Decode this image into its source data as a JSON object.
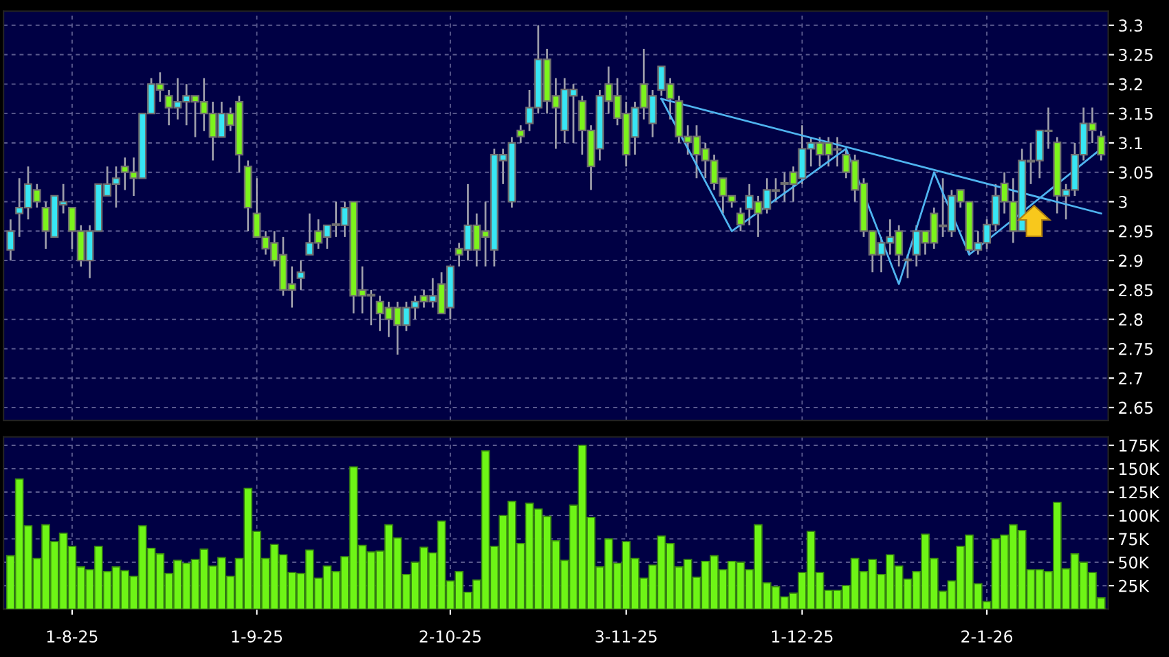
{
  "chart_data": [
    {
      "type": "candlestick",
      "categories": [
        null,
        null,
        null,
        null,
        null,
        null,
        null,
        null,
        null,
        null,
        null,
        null,
        null,
        null,
        null,
        null,
        null,
        null,
        null,
        null,
        null,
        null,
        null,
        null,
        null,
        null,
        null,
        null,
        null,
        null,
        null,
        null,
        null,
        null,
        null,
        null,
        null,
        null,
        null,
        null,
        null,
        null,
        null,
        null,
        null,
        null,
        null,
        null,
        null,
        null,
        null,
        null,
        null,
        null,
        null,
        null,
        null,
        null,
        null,
        null,
        null,
        null,
        null,
        null,
        null,
        null,
        null,
        null,
        null,
        null,
        null,
        null,
        null,
        null,
        null,
        null,
        null,
        null,
        null,
        null,
        null,
        null,
        null,
        null,
        null,
        null,
        null,
        null,
        null,
        null,
        null,
        null,
        null,
        null,
        null,
        null,
        null,
        null,
        null,
        null,
        null,
        null,
        null,
        null,
        null,
        null,
        null,
        null,
        null,
        null,
        null,
        null,
        null,
        null,
        null,
        null,
        null,
        null,
        null,
        null,
        null,
        null,
        null,
        null,
        null
      ],
      "ohlc": [
        [
          2.918,
          2.97,
          2.9,
          2.95
        ],
        [
          2.98,
          3.04,
          2.94,
          2.99
        ],
        [
          2.99,
          3.06,
          2.97,
          3.03
        ],
        [
          3.02,
          3.03,
          2.99,
          3.0
        ],
        [
          2.99,
          3.0,
          2.92,
          2.95
        ],
        [
          2.94,
          3.01,
          2.94,
          3.01
        ],
        [
          2.995,
          3.03,
          2.98,
          3.0
        ],
        [
          2.99,
          2.99,
          2.92,
          2.95
        ],
        [
          2.95,
          2.96,
          2.89,
          2.9
        ],
        [
          2.9,
          2.96,
          2.87,
          2.95
        ],
        [
          2.95,
          3.03,
          2.95,
          3.03
        ],
        [
          3.01,
          3.06,
          3.01,
          3.03
        ],
        [
          3.03,
          3.06,
          2.99,
          3.04
        ],
        [
          3.06,
          3.075,
          3.02,
          3.05
        ],
        [
          3.05,
          3.075,
          3.01,
          3.04
        ],
        [
          3.04,
          3.15,
          3.04,
          3.15
        ],
        [
          3.15,
          3.21,
          3.15,
          3.2
        ],
        [
          3.2,
          3.22,
          3.17,
          3.19
        ],
        [
          3.18,
          3.19,
          3.13,
          3.16
        ],
        [
          3.16,
          3.21,
          3.14,
          3.17
        ],
        [
          3.17,
          3.2,
          3.13,
          3.18
        ],
        [
          3.18,
          3.18,
          3.11,
          3.17
        ],
        [
          3.17,
          3.21,
          3.12,
          3.15
        ],
        [
          3.15,
          3.17,
          3.07,
          3.11
        ],
        [
          3.11,
          3.17,
          3.11,
          3.15
        ],
        [
          3.15,
          3.16,
          3.12,
          3.13
        ],
        [
          3.17,
          3.18,
          3.05,
          3.08
        ],
        [
          3.06,
          3.07,
          2.95,
          2.99
        ],
        [
          2.98,
          3.04,
          2.94,
          2.94
        ],
        [
          2.94,
          2.95,
          2.91,
          2.92
        ],
        [
          2.93,
          2.95,
          2.89,
          2.9
        ],
        [
          2.91,
          2.94,
          2.84,
          2.85
        ],
        [
          2.86,
          2.89,
          2.82,
          2.85
        ],
        [
          2.87,
          2.9,
          2.85,
          2.88
        ],
        [
          2.91,
          2.98,
          2.91,
          2.93
        ],
        [
          2.95,
          2.97,
          2.92,
          2.93
        ],
        [
          2.94,
          2.96,
          2.92,
          2.96
        ],
        [
          2.962,
          3.0,
          2.94,
          2.96
        ],
        [
          2.96,
          3.0,
          2.94,
          2.99
        ],
        [
          3.0,
          3.0,
          2.81,
          2.84
        ],
        [
          2.85,
          2.89,
          2.81,
          2.84
        ],
        [
          2.842,
          2.85,
          2.79,
          2.84
        ],
        [
          2.83,
          2.84,
          2.78,
          2.81
        ],
        [
          2.82,
          2.83,
          2.77,
          2.8
        ],
        [
          2.82,
          2.83,
          2.74,
          2.79
        ],
        [
          2.79,
          2.83,
          2.78,
          2.82
        ],
        [
          2.82,
          2.84,
          2.8,
          2.83
        ],
        [
          2.84,
          2.85,
          2.82,
          2.83
        ],
        [
          2.83,
          2.87,
          2.82,
          2.84
        ],
        [
          2.86,
          2.88,
          2.81,
          2.81
        ],
        [
          2.82,
          2.89,
          2.8,
          2.89
        ],
        [
          2.92,
          2.93,
          2.89,
          2.91
        ],
        [
          2.918,
          3.03,
          2.9,
          2.96
        ],
        [
          2.96,
          2.98,
          2.89,
          2.918
        ],
        [
          2.95,
          3.0,
          2.89,
          2.94
        ],
        [
          2.918,
          3.09,
          2.89,
          3.08
        ],
        [
          3.07,
          3.09,
          3.03,
          3.08
        ],
        [
          3.0,
          3.11,
          2.99,
          3.1
        ],
        [
          3.121,
          3.13,
          3.1,
          3.111
        ],
        [
          3.133,
          3.19,
          3.12,
          3.16
        ],
        [
          3.16,
          3.3,
          3.15,
          3.242
        ],
        [
          3.242,
          3.26,
          3.15,
          3.171
        ],
        [
          3.18,
          3.21,
          3.09,
          3.16
        ],
        [
          3.121,
          3.21,
          3.1,
          3.191
        ],
        [
          3.18,
          3.2,
          3.1,
          3.191
        ],
        [
          3.171,
          3.18,
          3.08,
          3.121
        ],
        [
          3.121,
          3.13,
          3.02,
          3.06
        ],
        [
          3.09,
          3.19,
          3.07,
          3.18
        ],
        [
          3.2,
          3.23,
          3.15,
          3.171
        ],
        [
          3.18,
          3.21,
          3.13,
          3.142
        ],
        [
          3.15,
          3.17,
          3.06,
          3.08
        ],
        [
          3.11,
          3.17,
          3.08,
          3.16
        ],
        [
          3.2,
          3.26,
          3.14,
          3.16
        ],
        [
          3.133,
          3.19,
          3.11,
          3.18
        ],
        [
          3.19,
          3.23,
          3.18,
          3.23
        ],
        [
          3.2,
          3.21,
          3.14,
          3.175
        ],
        [
          3.171,
          3.18,
          3.1,
          3.111
        ],
        [
          3.111,
          3.13,
          3.08,
          3.101
        ],
        [
          3.111,
          3.13,
          3.04,
          3.08
        ],
        [
          3.09,
          3.1,
          3.04,
          3.07
        ],
        [
          3.07,
          3.08,
          3.02,
          3.031
        ],
        [
          3.04,
          3.04,
          2.98,
          3.01
        ],
        [
          3.01,
          3.01,
          2.99,
          3.0
        ],
        [
          2.98,
          2.99,
          2.95,
          2.961
        ],
        [
          2.988,
          3.03,
          2.96,
          3.01
        ],
        [
          3.0,
          3.01,
          2.94,
          2.98
        ],
        [
          2.988,
          3.04,
          2.98,
          3.02
        ],
        [
          3.018,
          3.04,
          3.0,
          3.02
        ],
        [
          3.03,
          3.05,
          3.0,
          3.032
        ],
        [
          3.05,
          3.06,
          3.0,
          3.03
        ],
        [
          3.04,
          3.13,
          3.03,
          3.09
        ],
        [
          3.09,
          3.11,
          3.06,
          3.1
        ],
        [
          3.1,
          3.11,
          3.06,
          3.08
        ],
        [
          3.1,
          3.11,
          3.06,
          3.08
        ],
        [
          3.09,
          3.11,
          3.06,
          3.088
        ],
        [
          3.08,
          3.09,
          3.04,
          3.05
        ],
        [
          3.07,
          3.08,
          3.0,
          3.02
        ],
        [
          3.031,
          3.04,
          2.94,
          2.95
        ],
        [
          2.95,
          2.95,
          2.88,
          2.91
        ],
        [
          2.91,
          2.94,
          2.88,
          2.93
        ],
        [
          2.93,
          2.97,
          2.91,
          2.94
        ],
        [
          2.95,
          2.96,
          2.89,
          2.91
        ],
        [
          2.902,
          2.91,
          2.87,
          2.9
        ],
        [
          2.91,
          2.96,
          2.89,
          2.95
        ],
        [
          2.95,
          2.95,
          2.91,
          2.93
        ],
        [
          2.98,
          2.99,
          2.92,
          2.93
        ],
        [
          2.96,
          3.04,
          2.94,
          2.958
        ],
        [
          2.95,
          3.02,
          2.94,
          3.01
        ],
        [
          3.02,
          3.02,
          2.99,
          3.0
        ],
        [
          3.0,
          3.0,
          2.91,
          2.918
        ],
        [
          2.918,
          2.95,
          2.91,
          2.93
        ],
        [
          2.93,
          2.97,
          2.92,
          2.961
        ],
        [
          2.961,
          3.03,
          2.95,
          3.01
        ],
        [
          3.031,
          3.05,
          2.98,
          3.0
        ],
        [
          3.0,
          3.04,
          2.93,
          2.95
        ],
        [
          2.95,
          3.09,
          2.95,
          3.07
        ],
        [
          3.068,
          3.1,
          3.03,
          3.07
        ],
        [
          3.07,
          3.121,
          3.04,
          3.121
        ],
        [
          3.12,
          3.16,
          3.09,
          3.121
        ],
        [
          3.101,
          3.11,
          2.98,
          3.01
        ],
        [
          3.01,
          3.03,
          2.97,
          3.02
        ],
        [
          3.02,
          3.1,
          3.01,
          3.08
        ],
        [
          3.08,
          3.16,
          3.07,
          3.133
        ],
        [
          3.133,
          3.16,
          3.1,
          3.121
        ],
        [
          3.111,
          3.12,
          3.07,
          3.08
        ]
      ],
      "colors": [
        "#37e6f4",
        "#37e6f4",
        "#37e6f4",
        "#7cf41c",
        "#7cf41c",
        "#37e6f4",
        "#37e6f4",
        "#7cf41c",
        "#7cf41c",
        "#37e6f4",
        "#37e6f4",
        "#37e6f4",
        "#37e6f4",
        "#7cf41c",
        "#7cf41c",
        "#37e6f4",
        "#37e6f4",
        "#7cf41c",
        "#7cf41c",
        "#37e6f4",
        "#37e6f4",
        "#7cf41c",
        "#7cf41c",
        "#7cf41c",
        "#37e6f4",
        "#7cf41c",
        "#7cf41c",
        "#7cf41c",
        "#7cf41c",
        "#7cf41c",
        "#7cf41c",
        "#7cf41c",
        "#7cf41c",
        "#37e6f4",
        "#37e6f4",
        "#7cf41c",
        "#37e6f4",
        "#7cf41c",
        "#37e6f4",
        "#7cf41c",
        "#7cf41c",
        "#7cf41c",
        "#7cf41c",
        "#7cf41c",
        "#7cf41c",
        "#37e6f4",
        "#37e6f4",
        "#7cf41c",
        "#37e6f4",
        "#7cf41c",
        "#37e6f4",
        "#7cf41c",
        "#37e6f4",
        "#7cf41c",
        "#7cf41c",
        "#37e6f4",
        "#37e6f4",
        "#37e6f4",
        "#7cf41c",
        "#37e6f4",
        "#37e6f4",
        "#7cf41c",
        "#7cf41c",
        "#37e6f4",
        "#37e6f4",
        "#7cf41c",
        "#7cf41c",
        "#37e6f4",
        "#7cf41c",
        "#7cf41c",
        "#7cf41c",
        "#37e6f4",
        "#7cf41c",
        "#37e6f4",
        "#37e6f4",
        "#7cf41c",
        "#7cf41c",
        "#7cf41c",
        "#7cf41c",
        "#7cf41c",
        "#7cf41c",
        "#7cf41c",
        "#7cf41c",
        "#7cf41c",
        "#37e6f4",
        "#7cf41c",
        "#37e6f4",
        "#37e6f4",
        "#37e6f4",
        "#7cf41c",
        "#37e6f4",
        "#37e6f4",
        "#7cf41c",
        "#7cf41c",
        "#7cf41c",
        "#7cf41c",
        "#7cf41c",
        "#7cf41c",
        "#7cf41c",
        "#37e6f4",
        "#37e6f4",
        "#7cf41c",
        "#7cf41c",
        "#37e6f4",
        "#7cf41c",
        "#7cf41c",
        "#7cf41c",
        "#37e6f4",
        "#7cf41c",
        "#7cf41c",
        "#37e6f4",
        "#37e6f4",
        "#37e6f4",
        "#7cf41c",
        "#7cf41c",
        "#37e6f4",
        "#37e6f4",
        "#37e6f4",
        "#37e6f4",
        "#7cf41c",
        "#37e6f4",
        "#37e6f4",
        "#37e6f4",
        "#7cf41c",
        "#7cf41c"
      ],
      "series": [
        {
          "type": "line",
          "color": "#4fb4f0",
          "values": [
            null,
            null,
            null,
            null,
            null,
            null,
            null,
            null,
            null,
            null,
            null,
            null,
            null,
            null,
            null,
            null,
            null,
            null,
            null,
            null,
            null,
            null,
            null,
            null,
            null,
            null,
            null,
            null,
            null,
            null,
            null,
            null,
            null,
            null,
            null,
            null,
            null,
            null,
            null,
            null,
            null,
            null,
            null,
            null,
            null,
            null,
            null,
            null,
            null,
            null,
            null,
            null,
            null,
            null,
            null,
            null,
            null,
            null,
            null,
            null,
            null,
            null,
            null,
            null,
            null,
            null,
            null,
            null,
            null,
            null,
            null,
            null,
            null,
            null,
            3.175,
            null,
            null,
            null,
            null,
            null,
            null,
            null,
            null,
            null,
            null,
            null,
            null,
            null,
            null,
            null,
            null,
            null,
            null,
            null,
            null,
            null,
            null,
            null,
            null,
            null,
            null,
            null,
            null,
            null,
            null,
            null,
            null,
            null,
            null,
            null,
            null,
            null,
            null,
            null,
            null,
            null,
            null,
            null,
            null,
            null,
            null,
            null,
            null,
            null,
            2.98
          ]
        },
        {
          "type": "line",
          "color": "#4fb4f0",
          "values": [
            null,
            null,
            null,
            null,
            null,
            null,
            null,
            null,
            null,
            null,
            null,
            null,
            null,
            null,
            null,
            null,
            null,
            null,
            null,
            null,
            null,
            null,
            null,
            null,
            null,
            null,
            null,
            null,
            null,
            null,
            null,
            null,
            null,
            null,
            null,
            null,
            null,
            null,
            null,
            null,
            null,
            null,
            null,
            null,
            null,
            null,
            null,
            null,
            null,
            null,
            null,
            null,
            null,
            null,
            null,
            null,
            null,
            null,
            null,
            null,
            null,
            null,
            null,
            null,
            null,
            null,
            null,
            null,
            null,
            null,
            null,
            null,
            null,
            null,
            3.175,
            null,
            null,
            null,
            null,
            null,
            null,
            null,
            2.95,
            null,
            null,
            null,
            null,
            null,
            null,
            null,
            null,
            null,
            null,
            null,
            null,
            3.09,
            null,
            null,
            null,
            null,
            null,
            2.86,
            null,
            null,
            null,
            3.05,
            null,
            null,
            null,
            2.91,
            null,
            null,
            null,
            null,
            null,
            null,
            null,
            null,
            null,
            null,
            null,
            null,
            null,
            null,
            3.09
          ]
        }
      ],
      "ylim": [
        2.628,
        3.324
      ],
      "yticks": [
        2.65,
        2.7,
        2.75,
        2.8,
        2.85,
        2.9,
        2.95,
        3,
        3.05,
        3.1,
        3.15,
        3.2,
        3.25,
        3.3
      ],
      "grid": true,
      "tick_labels": "y"
    },
    {
      "type": "bar",
      "categories": [
        null,
        null,
        null,
        null,
        null,
        null,
        null,
        "1-8-25",
        null,
        null,
        null,
        null,
        null,
        null,
        null,
        null,
        null,
        null,
        null,
        null,
        null,
        null,
        null,
        null,
        null,
        null,
        null,
        null,
        "1-9-25",
        null,
        null,
        null,
        null,
        null,
        null,
        null,
        null,
        null,
        null,
        null,
        null,
        null,
        null,
        null,
        null,
        null,
        null,
        null,
        null,
        null,
        "2-10-25",
        null,
        null,
        null,
        null,
        null,
        null,
        null,
        null,
        null,
        null,
        null,
        null,
        null,
        null,
        null,
        null,
        null,
        null,
        null,
        "3-11-25",
        null,
        null,
        null,
        null,
        null,
        null,
        null,
        null,
        null,
        null,
        null,
        null,
        null,
        null,
        null,
        null,
        null,
        null,
        null,
        "1-12-25",
        null,
        null,
        null,
        null,
        null,
        null,
        null,
        null,
        null,
        null,
        null,
        null,
        null,
        null,
        null,
        null,
        null,
        null,
        null,
        null,
        "2-1-26",
        null,
        null,
        null,
        null,
        null,
        null,
        null,
        null,
        null,
        null,
        null,
        null,
        null
      ],
      "values": [
        57000,
        139000,
        89000,
        54000,
        90000,
        72000,
        81000,
        67000,
        45000,
        42000,
        67000,
        40000,
        45000,
        41000,
        35000,
        89000,
        65000,
        59000,
        38000,
        52000,
        49000,
        53000,
        64000,
        46000,
        55000,
        35000,
        54000,
        129000,
        83000,
        54000,
        69000,
        58000,
        39000,
        38000,
        63000,
        33000,
        46000,
        40000,
        56000,
        152000,
        68000,
        61000,
        62000,
        90000,
        76000,
        37000,
        50000,
        66000,
        60000,
        94000,
        30000,
        40000,
        18000,
        31000,
        169000,
        67000,
        100000,
        115000,
        70000,
        113000,
        107000,
        99000,
        73000,
        52000,
        111000,
        175000,
        98000,
        45000,
        75000,
        49000,
        72000,
        54000,
        33000,
        47000,
        78000,
        70000,
        45000,
        53000,
        34000,
        51000,
        57000,
        42000,
        51000,
        50000,
        42000,
        90000,
        28000,
        24000,
        13000,
        17000,
        39000,
        83000,
        39000,
        20000,
        20000,
        25000,
        54000,
        40000,
        53000,
        37000,
        58000,
        46000,
        32000,
        40000,
        80000,
        54000,
        19000,
        30000,
        67000,
        79000,
        27000,
        8000,
        75000,
        79000,
        90000,
        84000,
        42000,
        42000,
        40000,
        114000,
        43000,
        59000,
        50000,
        39000,
        12000
      ],
      "color": "#6ef516",
      "ylim": [
        0,
        184000
      ],
      "yticks": [
        {
          "value": 25000,
          "label": "25K"
        },
        {
          "value": 50000,
          "label": "50K"
        },
        {
          "value": 75000,
          "label": "75K"
        },
        {
          "value": 100000,
          "label": "100K"
        },
        {
          "value": 125000,
          "label": "125K"
        },
        {
          "value": 150000,
          "label": "150K"
        },
        {
          "value": 175000,
          "label": "175K"
        }
      ],
      "grid": true
    }
  ]
}
